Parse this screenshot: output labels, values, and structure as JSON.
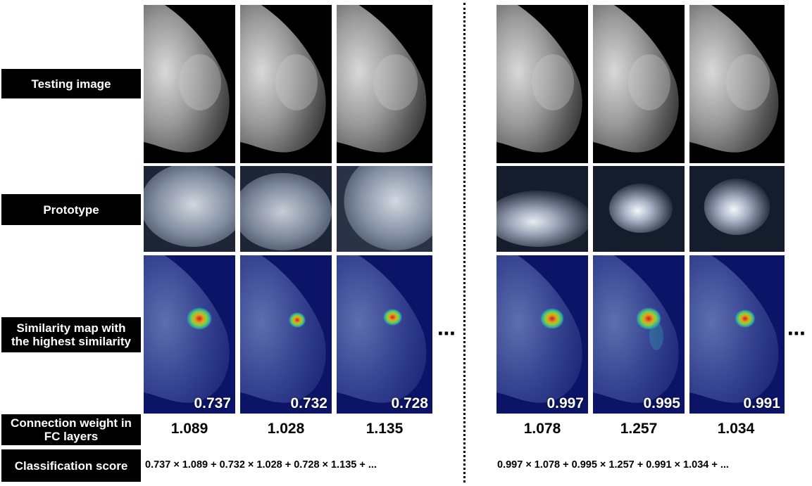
{
  "labels": {
    "testing": "Testing image",
    "prototype": "Prototype",
    "similarity_line1": "Similarity map with",
    "similarity_line2": "the highest similarity",
    "connection_line1": "Connection weight in",
    "connection_line2": "FC layers",
    "classification": "Classification score"
  },
  "left": {
    "similarity_scores": [
      "0.737",
      "0.732",
      "0.728"
    ],
    "weights": [
      "1.089",
      "1.028",
      "1.135"
    ],
    "formula": "0.737 × 1.089 + 0.732 × 1.028 + 0.728 × 1.135 + ..."
  },
  "right": {
    "similarity_scores": [
      "0.997",
      "0.995",
      "0.991"
    ],
    "weights": [
      "1.078",
      "1.257",
      "1.034"
    ],
    "formula": "0.997 × 1.078 + 0.995 × 1.257 + 0.991 × 1.034 + ..."
  },
  "ellipsis": "⋯",
  "colors": {
    "label_bg": "#000000",
    "label_text": "#ffffff",
    "heatmap_bg": "#0b1466"
  }
}
